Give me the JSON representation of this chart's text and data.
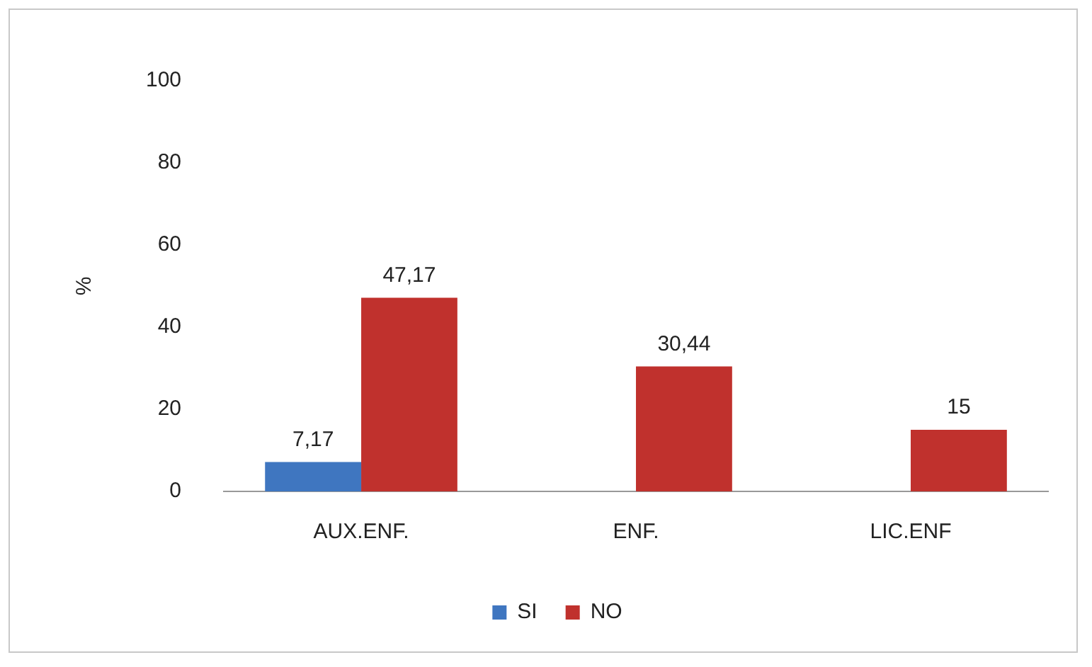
{
  "chart_data": {
    "type": "bar",
    "categories": [
      "AUX.ENF.",
      "ENF.",
      "LIC.ENF"
    ],
    "ylabel": "%",
    "ylim": [
      0,
      100
    ],
    "yticks": [
      0,
      20,
      40,
      60,
      80,
      100
    ],
    "grid": false,
    "legend": "bottom",
    "series": [
      {
        "name": "SI",
        "color": "#3f76c0",
        "values": [
          7.17,
          null,
          null
        ],
        "value_labels": [
          "7,17",
          null,
          null
        ]
      },
      {
        "name": "NO",
        "color": "#c0312d",
        "values": [
          47.17,
          30.44,
          15
        ],
        "value_labels": [
          "47,17",
          "30,44",
          "15"
        ]
      }
    ]
  }
}
